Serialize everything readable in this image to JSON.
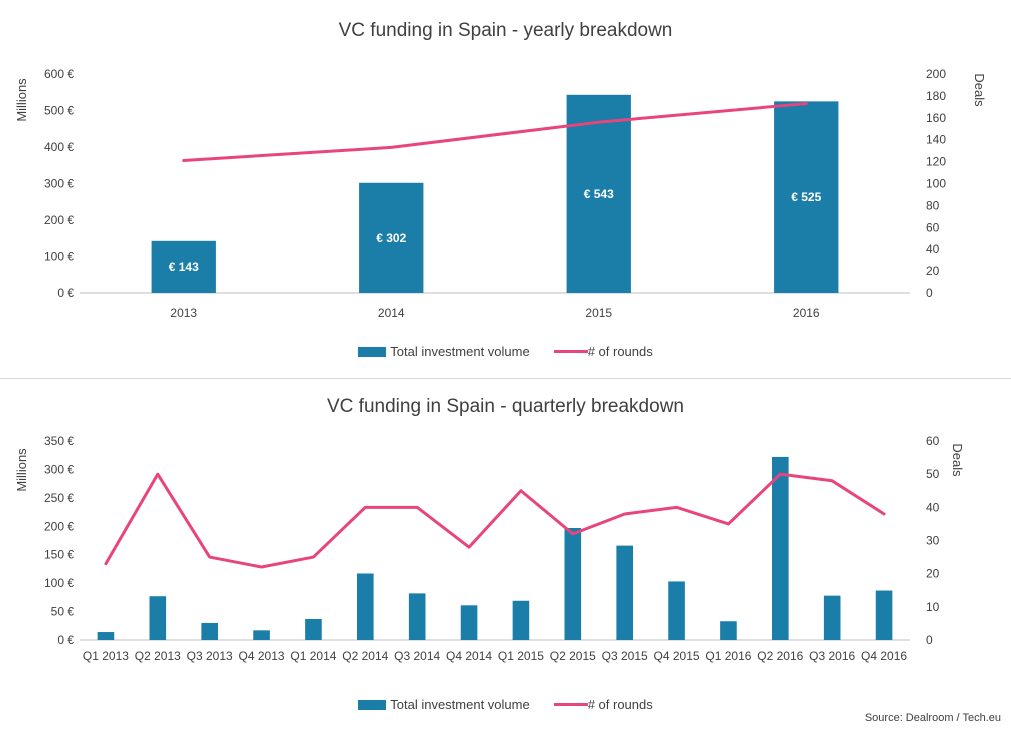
{
  "colors": {
    "bar": "#1a7ea8",
    "line": "#e8457b",
    "grid": "#d9d9d9",
    "axis": "#bfbfbf"
  },
  "source": "Source: Dealroom / Tech.eu",
  "chart_data": [
    {
      "type": "bar",
      "title": "VC funding in Spain - yearly breakdown",
      "categories": [
        "2013",
        "2014",
        "2015",
        "2016"
      ],
      "ylabel": "Millions",
      "y2label": "Deals",
      "ylim": [
        0,
        600
      ],
      "y2lim": [
        0,
        200
      ],
      "yticks": [
        0,
        100,
        200,
        300,
        400,
        500,
        600
      ],
      "yticklabels": [
        "0 €",
        "100 €",
        "200 €",
        "300 €",
        "400 €",
        "500 €",
        "600 €"
      ],
      "y2ticks": [
        0,
        20,
        40,
        60,
        80,
        100,
        120,
        140,
        160,
        180,
        200
      ],
      "y2ticklabels": [
        "0",
        "20",
        "40",
        "60",
        "80",
        "100",
        "120",
        "140",
        "160",
        "180",
        "200"
      ],
      "series": [
        {
          "name": "Total investment volume",
          "type": "bar",
          "axis": "left",
          "values": [
            143,
            302,
            543,
            525
          ],
          "data_labels": [
            "€ 143",
            "€ 302",
            "€ 543",
            "€ 525"
          ]
        },
        {
          "name": "# of rounds",
          "type": "line",
          "axis": "right",
          "values": [
            121,
            133,
            156,
            173
          ]
        }
      ],
      "legend": "bottom",
      "grid": false
    },
    {
      "type": "bar",
      "title": "VC funding in Spain - quarterly breakdown",
      "categories": [
        "Q1 2013",
        "Q2 2013",
        "Q3 2013",
        "Q4 2013",
        "Q1 2014",
        "Q2 2014",
        "Q3 2014",
        "Q4 2014",
        "Q1 2015",
        "Q2 2015",
        "Q3 2015",
        "Q4 2015",
        "Q1 2016",
        "Q2 2016",
        "Q3 2016",
        "Q4 2016"
      ],
      "ylabel": "Millions",
      "y2label": "Deals",
      "ylim": [
        0,
        350
      ],
      "y2lim": [
        0,
        60
      ],
      "yticks": [
        0,
        50,
        100,
        150,
        200,
        250,
        300,
        350
      ],
      "yticklabels": [
        "0 €",
        "50 €",
        "100 €",
        "150 €",
        "200 €",
        "250 €",
        "300 €",
        "350 €"
      ],
      "y2ticks": [
        0,
        10,
        20,
        30,
        40,
        50,
        60
      ],
      "y2ticklabels": [
        "0",
        "10",
        "20",
        "30",
        "40",
        "50",
        "60"
      ],
      "series": [
        {
          "name": "Total investment volume",
          "type": "bar",
          "axis": "left",
          "values": [
            14,
            77,
            30,
            17,
            37,
            117,
            82,
            61,
            69,
            197,
            166,
            103,
            33,
            322,
            78,
            87
          ]
        },
        {
          "name": "# of rounds",
          "type": "line",
          "axis": "right",
          "values": [
            23,
            50,
            25,
            22,
            25,
            40,
            40,
            28,
            45,
            32,
            38,
            40,
            35,
            50,
            48,
            38
          ]
        }
      ],
      "legend": "bottom",
      "grid": false
    }
  ]
}
